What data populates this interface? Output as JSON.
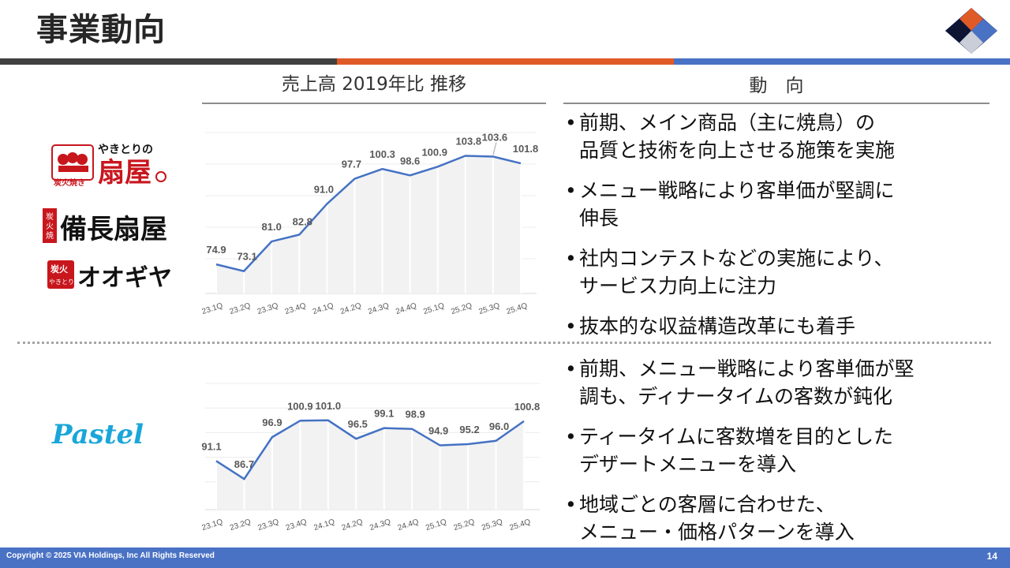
{
  "header": {
    "title": "事業動向"
  },
  "colors": {
    "band_dark": "#404040",
    "band_orange": "#e05a28",
    "band_blue": "#4a72c4",
    "line": "#4472c4",
    "footer": "#4a72c4"
  },
  "left_column": {
    "heading": "売上高 2019年比 推移"
  },
  "right_column": {
    "heading": "動　向"
  },
  "brands": {
    "top": [
      {
        "name": "やきとりの扇屋",
        "sub": "炭火焼き",
        "icon": "ougiya-logo"
      },
      {
        "name": "備長扇屋",
        "icon": "binchou-ougiya-logo"
      },
      {
        "name": "オオギヤ",
        "sub": "炭火やきとり",
        "icon": "ohgiya-logo"
      }
    ],
    "bottom": [
      {
        "name": "Pastel",
        "icon": "pastel-logo"
      }
    ]
  },
  "chart_data": [
    {
      "type": "line",
      "categories": [
        "23.1Q",
        "23.2Q",
        "23.3Q",
        "23.4Q",
        "24.1Q",
        "24.2Q",
        "24.3Q",
        "24.4Q",
        "25.1Q",
        "25.2Q",
        "25.3Q",
        "25.4Q"
      ],
      "values": [
        74.9,
        73.1,
        81.0,
        82.8,
        91.0,
        97.7,
        100.3,
        98.6,
        100.9,
        103.8,
        103.6,
        101.8
      ],
      "labels": [
        "74.9",
        "73.1",
        "81.0",
        "82.8",
        "91.0",
        "97.7",
        "100.3",
        "98.6",
        "100.9",
        "103.8",
        "103.6",
        "101.8"
      ],
      "ylim": [
        68,
        110
      ],
      "grid": "horizontal"
    },
    {
      "type": "line",
      "categories": [
        "23.1Q",
        "23.2Q",
        "23.3Q",
        "23.4Q",
        "24.1Q",
        "24.2Q",
        "24.3Q",
        "24.4Q",
        "25.1Q",
        "25.2Q",
        "25.3Q",
        "25.4Q"
      ],
      "values": [
        91.1,
        86.7,
        96.9,
        100.9,
        101.0,
        96.5,
        99.1,
        98.9,
        94.9,
        95.2,
        96.0,
        100.8
      ],
      "labels": [
        "91.1",
        "86.7",
        "96.9",
        "100.9",
        "101.0",
        "96.5",
        "99.1",
        "98.9",
        "94.9",
        "95.2",
        "96.0",
        "100.8"
      ],
      "ylim": [
        80,
        110
      ],
      "grid": "horizontal"
    }
  ],
  "trends": {
    "top": [
      "前期、メイン商品（主に焼鳥）の\n品質と技術を向上させる施策を実施",
      "メニュー戦略により客単価が堅調に\n伸長",
      "社内コンテストなどの実施により、\nサービス力向上に注力",
      "抜本的な収益構造改革にも着手"
    ],
    "bottom": [
      "前期、メニュー戦略により客単価が堅\n調も、ディナータイムの客数が鈍化",
      "ティータイムに客数増を目的とした\nデザートメニューを導入",
      "地域ごとの客層に合わせた、\nメニュー・価格パターンを導入"
    ],
    "bullet_char": "•"
  },
  "footer": {
    "copyright": "Copyright © 2025 VIA Holdings, Inc All Rights Reserved",
    "page": "14"
  }
}
